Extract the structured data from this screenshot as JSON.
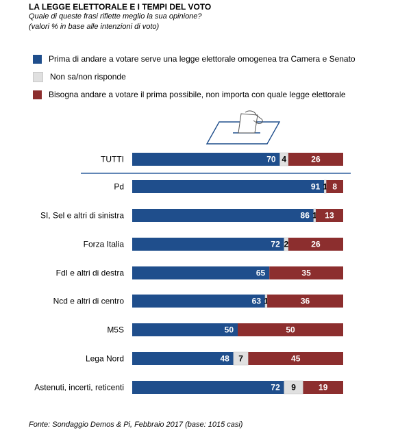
{
  "header": {
    "title": "LA LEGGE ELETTORALE  E I TEMPI DEL VOTO",
    "subtitle": "Quale di queste frasi riflette meglio la sua opinione?",
    "note": "(valori % in base alle intenzioni di voto)"
  },
  "legend": [
    {
      "label": "Prima di andare a votare serve una legge elettorale omogenea tra Camera e Senato",
      "color": "#1f4e8c"
    },
    {
      "label": "Non sa/non risponde",
      "color": "#e0e0e0"
    },
    {
      "label": "Bisogna andare a votare il prima possibile, non importa con quale legge elettorale",
      "color": "#8c2e2e"
    }
  ],
  "source": "Fonte: Sondaggio Demos & Pi, Febbraio 2017 (base: 1015 casi)",
  "chart_data": {
    "type": "bar",
    "orientation": "horizontal",
    "stacked": true,
    "categories": [
      "TUTTI",
      "Pd",
      "SI, Sel e altri di sinistra",
      "Forza Italia",
      "FdI e altri di destra",
      "Ncd e altri di centro",
      "M5S",
      "Lega Nord",
      "Astenuti, incerti, reticenti"
    ],
    "series": [
      {
        "name": "Prima di andare a votare serve una legge elettorale omogenea tra Camera e Senato",
        "color": "#1f4e8c",
        "values": [
          70,
          91,
          86,
          72,
          65,
          63,
          50,
          48,
          72
        ],
        "labels": [
          "70",
          "91",
          "86",
          "72",
          "65",
          "63",
          "50",
          "48",
          "72"
        ]
      },
      {
        "name": "Non sa/non risponde",
        "color": "#e0e0e0",
        "values": [
          4,
          1,
          1,
          2,
          0,
          1,
          0,
          7,
          9
        ],
        "labels": [
          "4",
          "1",
          "1",
          "2",
          "",
          "1",
          "",
          "7",
          "9"
        ]
      },
      {
        "name": "Bisogna andare a votare il prima possibile, non importa con quale legge elettorale",
        "color": "#8c2e2e",
        "values": [
          26,
          8,
          13,
          26,
          35,
          36,
          50,
          45,
          19
        ],
        "labels": [
          "26",
          "8",
          "13",
          "26",
          "35",
          "36",
          "50",
          "45",
          "19"
        ]
      }
    ],
    "xlim": [
      0,
      100
    ],
    "grid": false,
    "legend_position": "top"
  }
}
